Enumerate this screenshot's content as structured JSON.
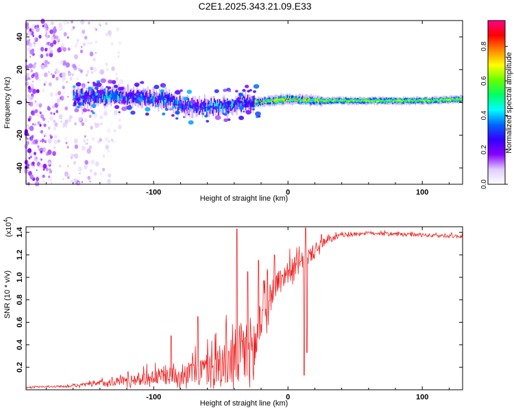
{
  "figure": {
    "title": "C2E1.2025.343.21.09.E33"
  },
  "chart_data": [
    {
      "type": "heatmap",
      "name": "spectrogram",
      "xlabel": "Height of straight line (km)",
      "ylabel": "Frequency (Hz)",
      "xlim": [
        -195,
        130
      ],
      "ylim": [
        -50,
        50
      ],
      "xticks": [
        -100,
        0,
        100
      ],
      "xtick_labels": [
        "-100",
        "0",
        "100"
      ],
      "yticks": [
        -40,
        -20,
        0,
        20,
        40
      ],
      "ytick_labels": [
        "-40",
        "-20",
        "0",
        "20",
        "40"
      ],
      "colorbar": {
        "label": "Normalized spectral amplitude",
        "range": [
          0,
          0.95
        ],
        "ticks": [
          0.0,
          0.2,
          0.4,
          0.6,
          0.8
        ],
        "tick_labels": [
          "0.0",
          "0.2",
          "0.4",
          "0.6",
          "0.8"
        ],
        "colormap": [
          "#ffffff",
          "#e0ccff",
          "#8800ff",
          "#3300ff",
          "#0066ff",
          "#00ffff",
          "#00ff66",
          "#66ff00",
          "#ffff00",
          "#ff8800",
          "#ff0000",
          "#ff0088"
        ]
      },
      "signal_center_hz": [
        {
          "x": -155,
          "f": 3
        },
        {
          "x": -130,
          "f": 4
        },
        {
          "x": -110,
          "f": 3
        },
        {
          "x": -90,
          "f": 2
        },
        {
          "x": -80,
          "f": -2
        },
        {
          "x": -60,
          "f": -3
        },
        {
          "x": -45,
          "f": -2
        },
        {
          "x": -35,
          "f": 0
        },
        {
          "x": -25,
          "f": 0
        },
        {
          "x": 0,
          "f": 2
        },
        {
          "x": 20,
          "f": 1
        },
        {
          "x": 60,
          "f": 1
        },
        {
          "x": 100,
          "f": 1
        },
        {
          "x": 130,
          "f": 2
        }
      ]
    },
    {
      "type": "line",
      "name": "snr",
      "xlabel": "Height of straight line (km)",
      "ylabel": "SNR (10 * v/v)",
      "multiplier": "(x10",
      "multiplier_exp": "4",
      "multiplier_close": ")",
      "xlim": [
        -195,
        130
      ],
      "ylim": [
        0,
        1.45
      ],
      "xticks": [
        -100,
        0,
        100
      ],
      "xtick_labels": [
        "-100",
        "0",
        "100"
      ],
      "yticks": [
        0.2,
        0.4,
        0.6,
        0.8,
        1.0,
        1.2,
        1.4
      ],
      "ytick_labels": [
        "0.2",
        "0.4",
        "0.6",
        "0.8",
        "1.0",
        "1.2",
        "1.4"
      ],
      "color": "#ee2222",
      "envelope": [
        {
          "x": -195,
          "base": 0.02,
          "amp": 0.01
        },
        {
          "x": -160,
          "base": 0.03,
          "amp": 0.02
        },
        {
          "x": -130,
          "base": 0.06,
          "amp": 0.07
        },
        {
          "x": -110,
          "base": 0.08,
          "amp": 0.12
        },
        {
          "x": -90,
          "base": 0.1,
          "amp": 0.16
        },
        {
          "x": -70,
          "base": 0.12,
          "amp": 0.22
        },
        {
          "x": -50,
          "base": 0.16,
          "amp": 0.38
        },
        {
          "x": -35,
          "base": 0.22,
          "amp": 0.6
        },
        {
          "x": -25,
          "base": 0.25,
          "amp": 0.65
        },
        {
          "x": -20,
          "base": 0.55,
          "amp": 0.4
        },
        {
          "x": -10,
          "base": 0.9,
          "amp": 0.22
        },
        {
          "x": 0,
          "base": 1.02,
          "amp": 0.2
        },
        {
          "x": 10,
          "base": 1.1,
          "amp": 0.18
        },
        {
          "x": 20,
          "base": 1.22,
          "amp": 0.12
        },
        {
          "x": 30,
          "base": 1.32,
          "amp": 0.06
        },
        {
          "x": 40,
          "base": 1.37,
          "amp": 0.04
        },
        {
          "x": 60,
          "base": 1.39,
          "amp": 0.03
        },
        {
          "x": 100,
          "base": 1.37,
          "amp": 0.03
        },
        {
          "x": 130,
          "base": 1.36,
          "amp": 0.03
        }
      ],
      "spikes": [
        {
          "x": -87,
          "y": 0.48
        },
        {
          "x": -67,
          "y": 0.65
        },
        {
          "x": -38,
          "y": 1.43
        },
        {
          "x": -30,
          "y": 1.05
        },
        {
          "x": -22,
          "y": 1.15
        },
        {
          "x": -18,
          "y": 0.97
        },
        {
          "x": -10,
          "y": 1.2
        },
        {
          "x": 12,
          "y": 0.13
        },
        {
          "x": 13,
          "y": 1.44
        },
        {
          "x": 14,
          "y": 0.33
        },
        {
          "x": 25,
          "y": 1.38
        }
      ]
    }
  ]
}
